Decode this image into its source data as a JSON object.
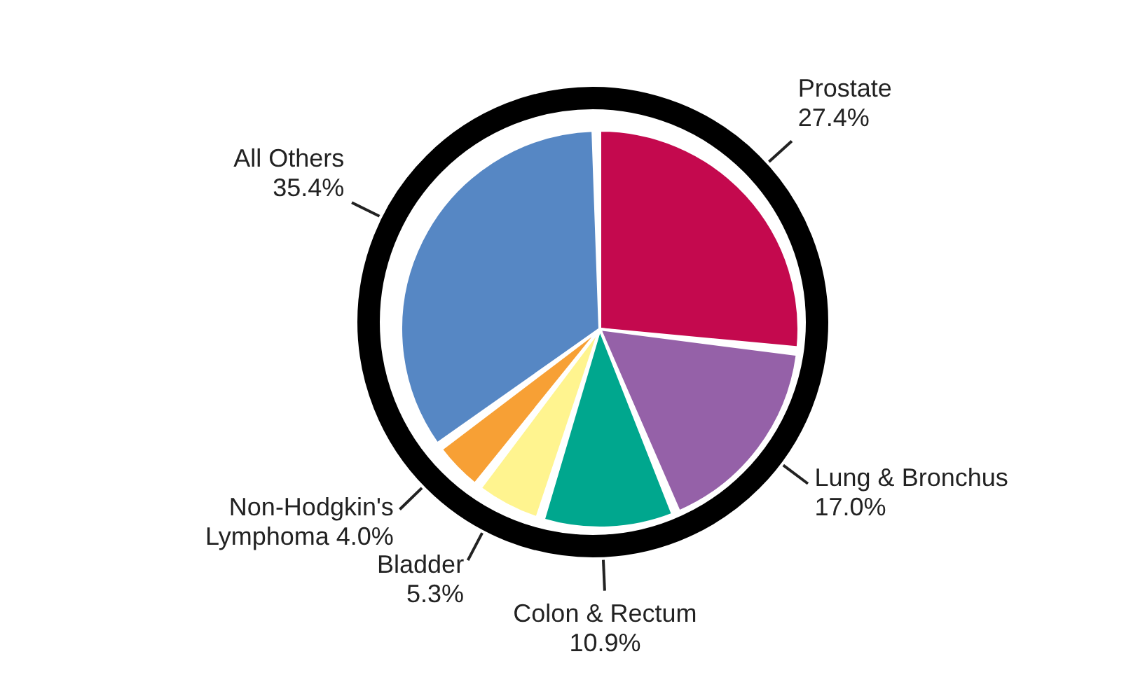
{
  "chart_data": {
    "type": "pie",
    "categories": [
      "Prostate",
      "Lung & Bronchus",
      "Colon & Rectum",
      "Bladder",
      "Non-Hodgkin's Lymphoma",
      "All Others"
    ],
    "values": [
      27.4,
      17.0,
      10.9,
      5.3,
      4.0,
      35.4
    ],
    "colors": [
      "#c4094e",
      "#9561a8",
      "#00a78e",
      "#fff48f",
      "#f7a035",
      "#5687c4"
    ],
    "value_labels": [
      "27.4%",
      "17.0%",
      "10.9%",
      "5.3%",
      "4.0%",
      "35.4%"
    ]
  }
}
